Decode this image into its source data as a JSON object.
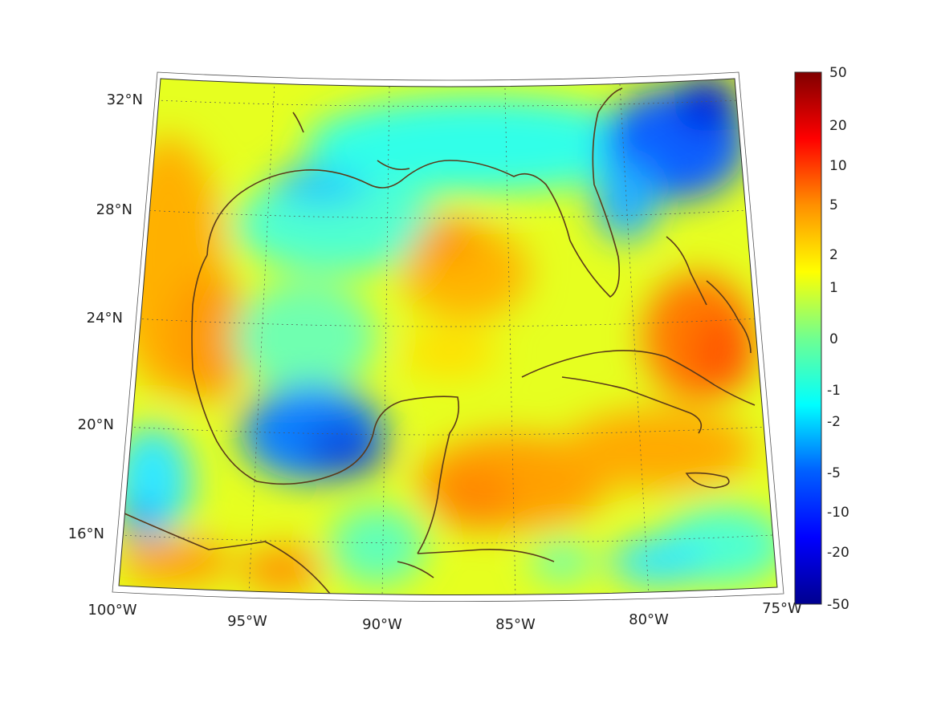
{
  "map": {
    "lon_labels": [
      "100°W",
      "95°W",
      "90°W",
      "85°W",
      "80°W",
      "75°W"
    ],
    "lat_labels": [
      "32°N",
      "28°N",
      "24°N",
      "20°N",
      "16°N"
    ]
  },
  "colorbar": {
    "tick_labels": [
      "50",
      "20",
      "10",
      "5",
      "2",
      "1",
      "0",
      "-1",
      "-2",
      "-5",
      "-10",
      "-20",
      "-50"
    ],
    "colormap": "jet",
    "colors": [
      "#00008f",
      "#0000ff",
      "#0080ff",
      "#00ffff",
      "#80ff80",
      "#ffff00",
      "#ff8000",
      "#ff0000",
      "#800000"
    ]
  },
  "coastline_color": "#5a3a1a"
}
